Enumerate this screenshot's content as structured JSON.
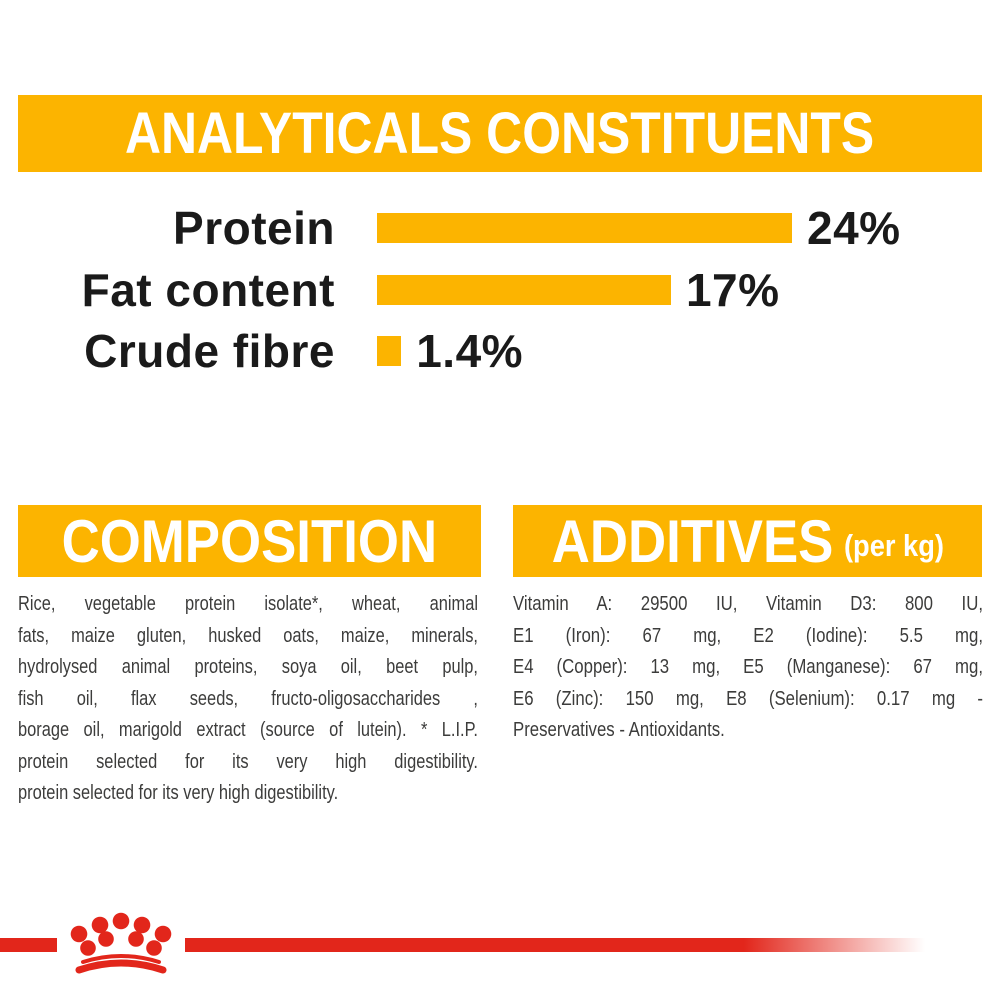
{
  "colors": {
    "accent": "#FCB400",
    "red": "#E2261B",
    "text": "#3C3C3B",
    "dark": "#1A1A1A"
  },
  "header": {
    "title": "ANALYTICALS CONSTITUENTS"
  },
  "chart_data": {
    "type": "bar",
    "orientation": "horizontal",
    "title": "ANALYTICALS CONSTITUENTS",
    "categories": [
      "Protein",
      "Fat content",
      "Crude fibre"
    ],
    "values": [
      24,
      17,
      1.4
    ],
    "value_labels": [
      "24%",
      "17%",
      "1.4%"
    ],
    "unit": "%",
    "xlim": [
      0,
      24
    ],
    "bar_color": "#FCB400",
    "grid": false,
    "legend": false
  },
  "composition": {
    "title": "COMPOSITION",
    "body_lines": [
      "Rice, vegetable protein isolate*, wheat, animal",
      "fats, maize gluten, husked oats, maize, minerals,",
      "hydrolysed animal proteins, soya oil, beet pulp,",
      "fish oil, flax seeds, fructo-oligosaccharides ,",
      "borage oil, marigold extract (source of lutein). * L.I.P.",
      "protein selected for its very high digestibility.",
      "protein selected for its very high digestibility."
    ]
  },
  "additives": {
    "title": "ADDITIVES",
    "title_suffix": "(per kg)",
    "body_lines": [
      "Vitamin A: 29500 IU, Vitamin D3: 800 IU,",
      "E1 (Iron): 67 mg, E2 (Iodine): 5.5 mg,",
      "E4 (Copper): 13 mg, E5 (Manganese): 67 mg,",
      "E6 (Zinc): 150 mg, E8 (Selenium): 0.17 mg -",
      "Preservatives - Antioxidants."
    ]
  },
  "footer": {
    "logo": "royal-canin-crown"
  }
}
